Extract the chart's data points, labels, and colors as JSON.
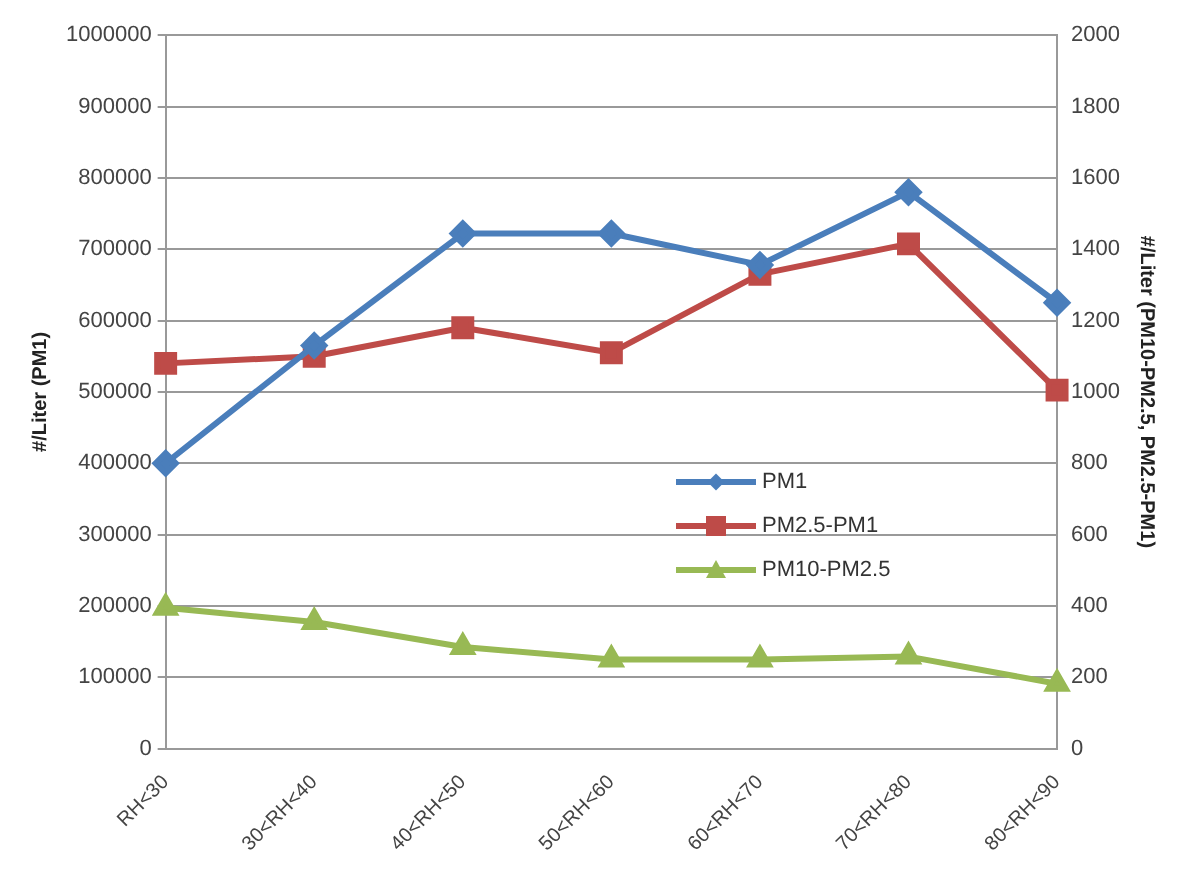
{
  "chart_data": {
    "type": "line",
    "ylabel": "#/Liter (PM1)",
    "y2label": "#/Liter (PM10-PM2.5, PM2.5-PM1)",
    "categories": [
      "RH<30",
      "30<RH<40",
      "40<RH<50",
      "50<RH<60",
      "60<RH<70",
      "70<RH<80",
      "80<RH<90"
    ],
    "series": [
      {
        "name": "PM1",
        "color": "#4a7ebb",
        "marker": "diamond",
        "values": [
          400000,
          565000,
          722000,
          722000,
          678000,
          780000,
          625000
        ]
      },
      {
        "name": "PM2.5-PM1",
        "color": "#be4b48",
        "marker": "square",
        "axis": "y2",
        "values": [
          1080,
          1100,
          1180,
          1110,
          1330,
          1415,
          1005
        ]
      },
      {
        "name": "PM10-PM2.5",
        "color": "#98b954",
        "marker": "triangle",
        "axis": "y2",
        "values": [
          395,
          355,
          285,
          250,
          250,
          258,
          182
        ]
      }
    ],
    "ylim": [
      0,
      1000000
    ],
    "yticks": [
      0,
      100000,
      200000,
      300000,
      400000,
      500000,
      600000,
      700000,
      800000,
      900000,
      1000000
    ],
    "y2lim": [
      0,
      2000
    ],
    "y2ticks": [
      0,
      200,
      400,
      600,
      800,
      1000,
      1200,
      1400,
      1600,
      1800,
      2000
    ],
    "grid": "y",
    "legend": "center right"
  }
}
